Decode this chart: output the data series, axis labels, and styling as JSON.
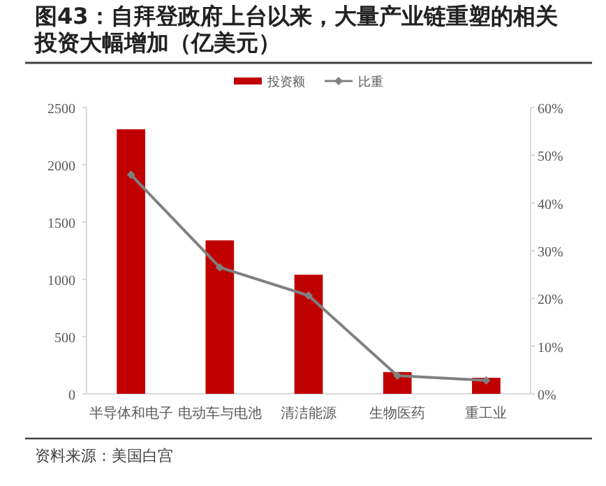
{
  "chart_data": {
    "type": "bar",
    "title": "图43：自拜登政府上台以来，大量产业链重塑的相关投资大幅增加（亿美元）",
    "categories": [
      "半导体和电子",
      "电动车与电池",
      "清洁能源",
      "生物医药",
      "重工业"
    ],
    "series": [
      {
        "name": "投资额",
        "color": "#c00000",
        "values": [
          2310,
          1340,
          1040,
          190,
          140
        ]
      },
      {
        "name": "比重",
        "type": "line",
        "axis": "y2",
        "color": "#808080",
        "marker": "diamond",
        "values": [
          45.9,
          26.5,
          20.6,
          3.8,
          2.8
        ]
      }
    ],
    "ylim": [
      0,
      2500
    ],
    "yticks": [
      0,
      500,
      1000,
      1500,
      2000,
      2500
    ],
    "y2lim": [
      0,
      60
    ],
    "y2ticks": [
      {
        "value": 0,
        "label": "0%"
      },
      {
        "value": 10,
        "label": "10%"
      },
      {
        "value": 20,
        "label": "20%"
      },
      {
        "value": 30,
        "label": "30%"
      },
      {
        "value": 40,
        "label": "40%"
      },
      {
        "value": 50,
        "label": "50%"
      },
      {
        "value": 60,
        "label": "60%"
      }
    ],
    "legend": "top",
    "grid": false,
    "annotations": [
      "资料来源：美国白宫"
    ]
  }
}
